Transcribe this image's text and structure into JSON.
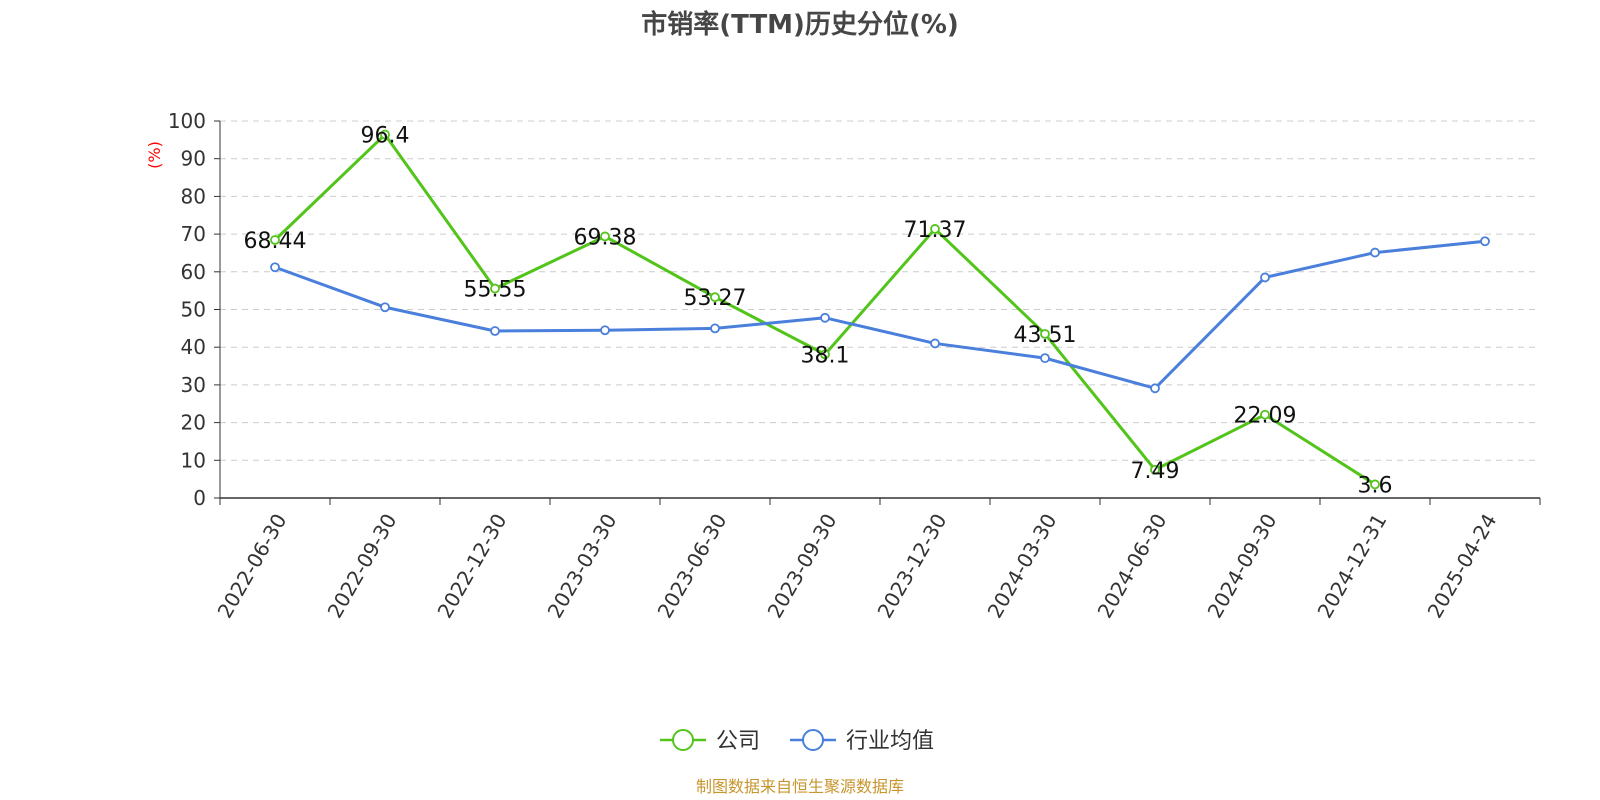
{
  "chart_data": {
    "type": "line",
    "title": "市销率(TTM)历史分位(%)",
    "ylabel": "(%)",
    "ylim": [
      0,
      100
    ],
    "yticks": [
      0,
      10,
      20,
      30,
      40,
      50,
      60,
      70,
      80,
      90,
      100
    ],
    "grid": true,
    "legend_position": "bottom",
    "categories": [
      "2022-06-30",
      "2022-09-30",
      "2022-12-30",
      "2023-03-30",
      "2023-06-30",
      "2023-09-30",
      "2023-12-30",
      "2024-03-30",
      "2024-06-30",
      "2024-09-30",
      "2024-12-31",
      "2025-04-24"
    ],
    "series": [
      {
        "name": "公司",
        "color": "#52c41a",
        "values": [
          68.44,
          96.4,
          55.55,
          69.38,
          53.27,
          38.1,
          71.37,
          43.51,
          7.49,
          22.09,
          3.6,
          null
        ],
        "labels": [
          "68.44",
          "96.4",
          "55.55",
          "69.38",
          "53.27",
          "38.1",
          "71.37",
          "43.51",
          "7.49",
          "22.09",
          "3.6",
          ""
        ]
      },
      {
        "name": "行业均值",
        "color": "#4a7fdc",
        "values": [
          61.2,
          50.6,
          44.3,
          44.5,
          45.0,
          47.8,
          41.0,
          37.1,
          29.1,
          58.5,
          65.1,
          68.1
        ]
      }
    ],
    "source": "制图数据来自恒生聚源数据库"
  }
}
